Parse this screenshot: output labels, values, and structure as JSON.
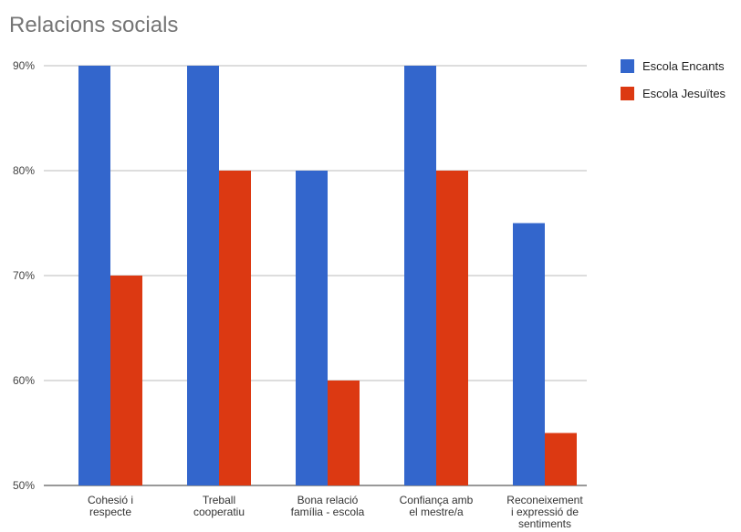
{
  "chart_data": {
    "type": "bar",
    "title": "Relacions socials",
    "categories": [
      [
        "Cohesió i",
        "respecte"
      ],
      [
        "Treball",
        "cooperatiu"
      ],
      [
        "Bona relació",
        "família - escola"
      ],
      [
        "Confiança amb",
        "el mestre/a"
      ],
      [
        "Reconeixement",
        "i expressió de",
        "sentiments"
      ]
    ],
    "series": [
      {
        "name": "Escola Encants",
        "color": "#3366cc",
        "values": [
          90,
          90,
          80,
          90,
          75
        ]
      },
      {
        "name": "Escola Jesuïtes",
        "color": "#dc3912",
        "values": [
          70,
          80,
          60,
          80,
          55
        ]
      }
    ],
    "ylim": [
      50,
      90
    ],
    "yticks": [
      "50%",
      "60%",
      "70%",
      "80%",
      "90%"
    ],
    "ytick_values": [
      50,
      60,
      70,
      80,
      90
    ],
    "grid": true,
    "legend_position": "right"
  }
}
